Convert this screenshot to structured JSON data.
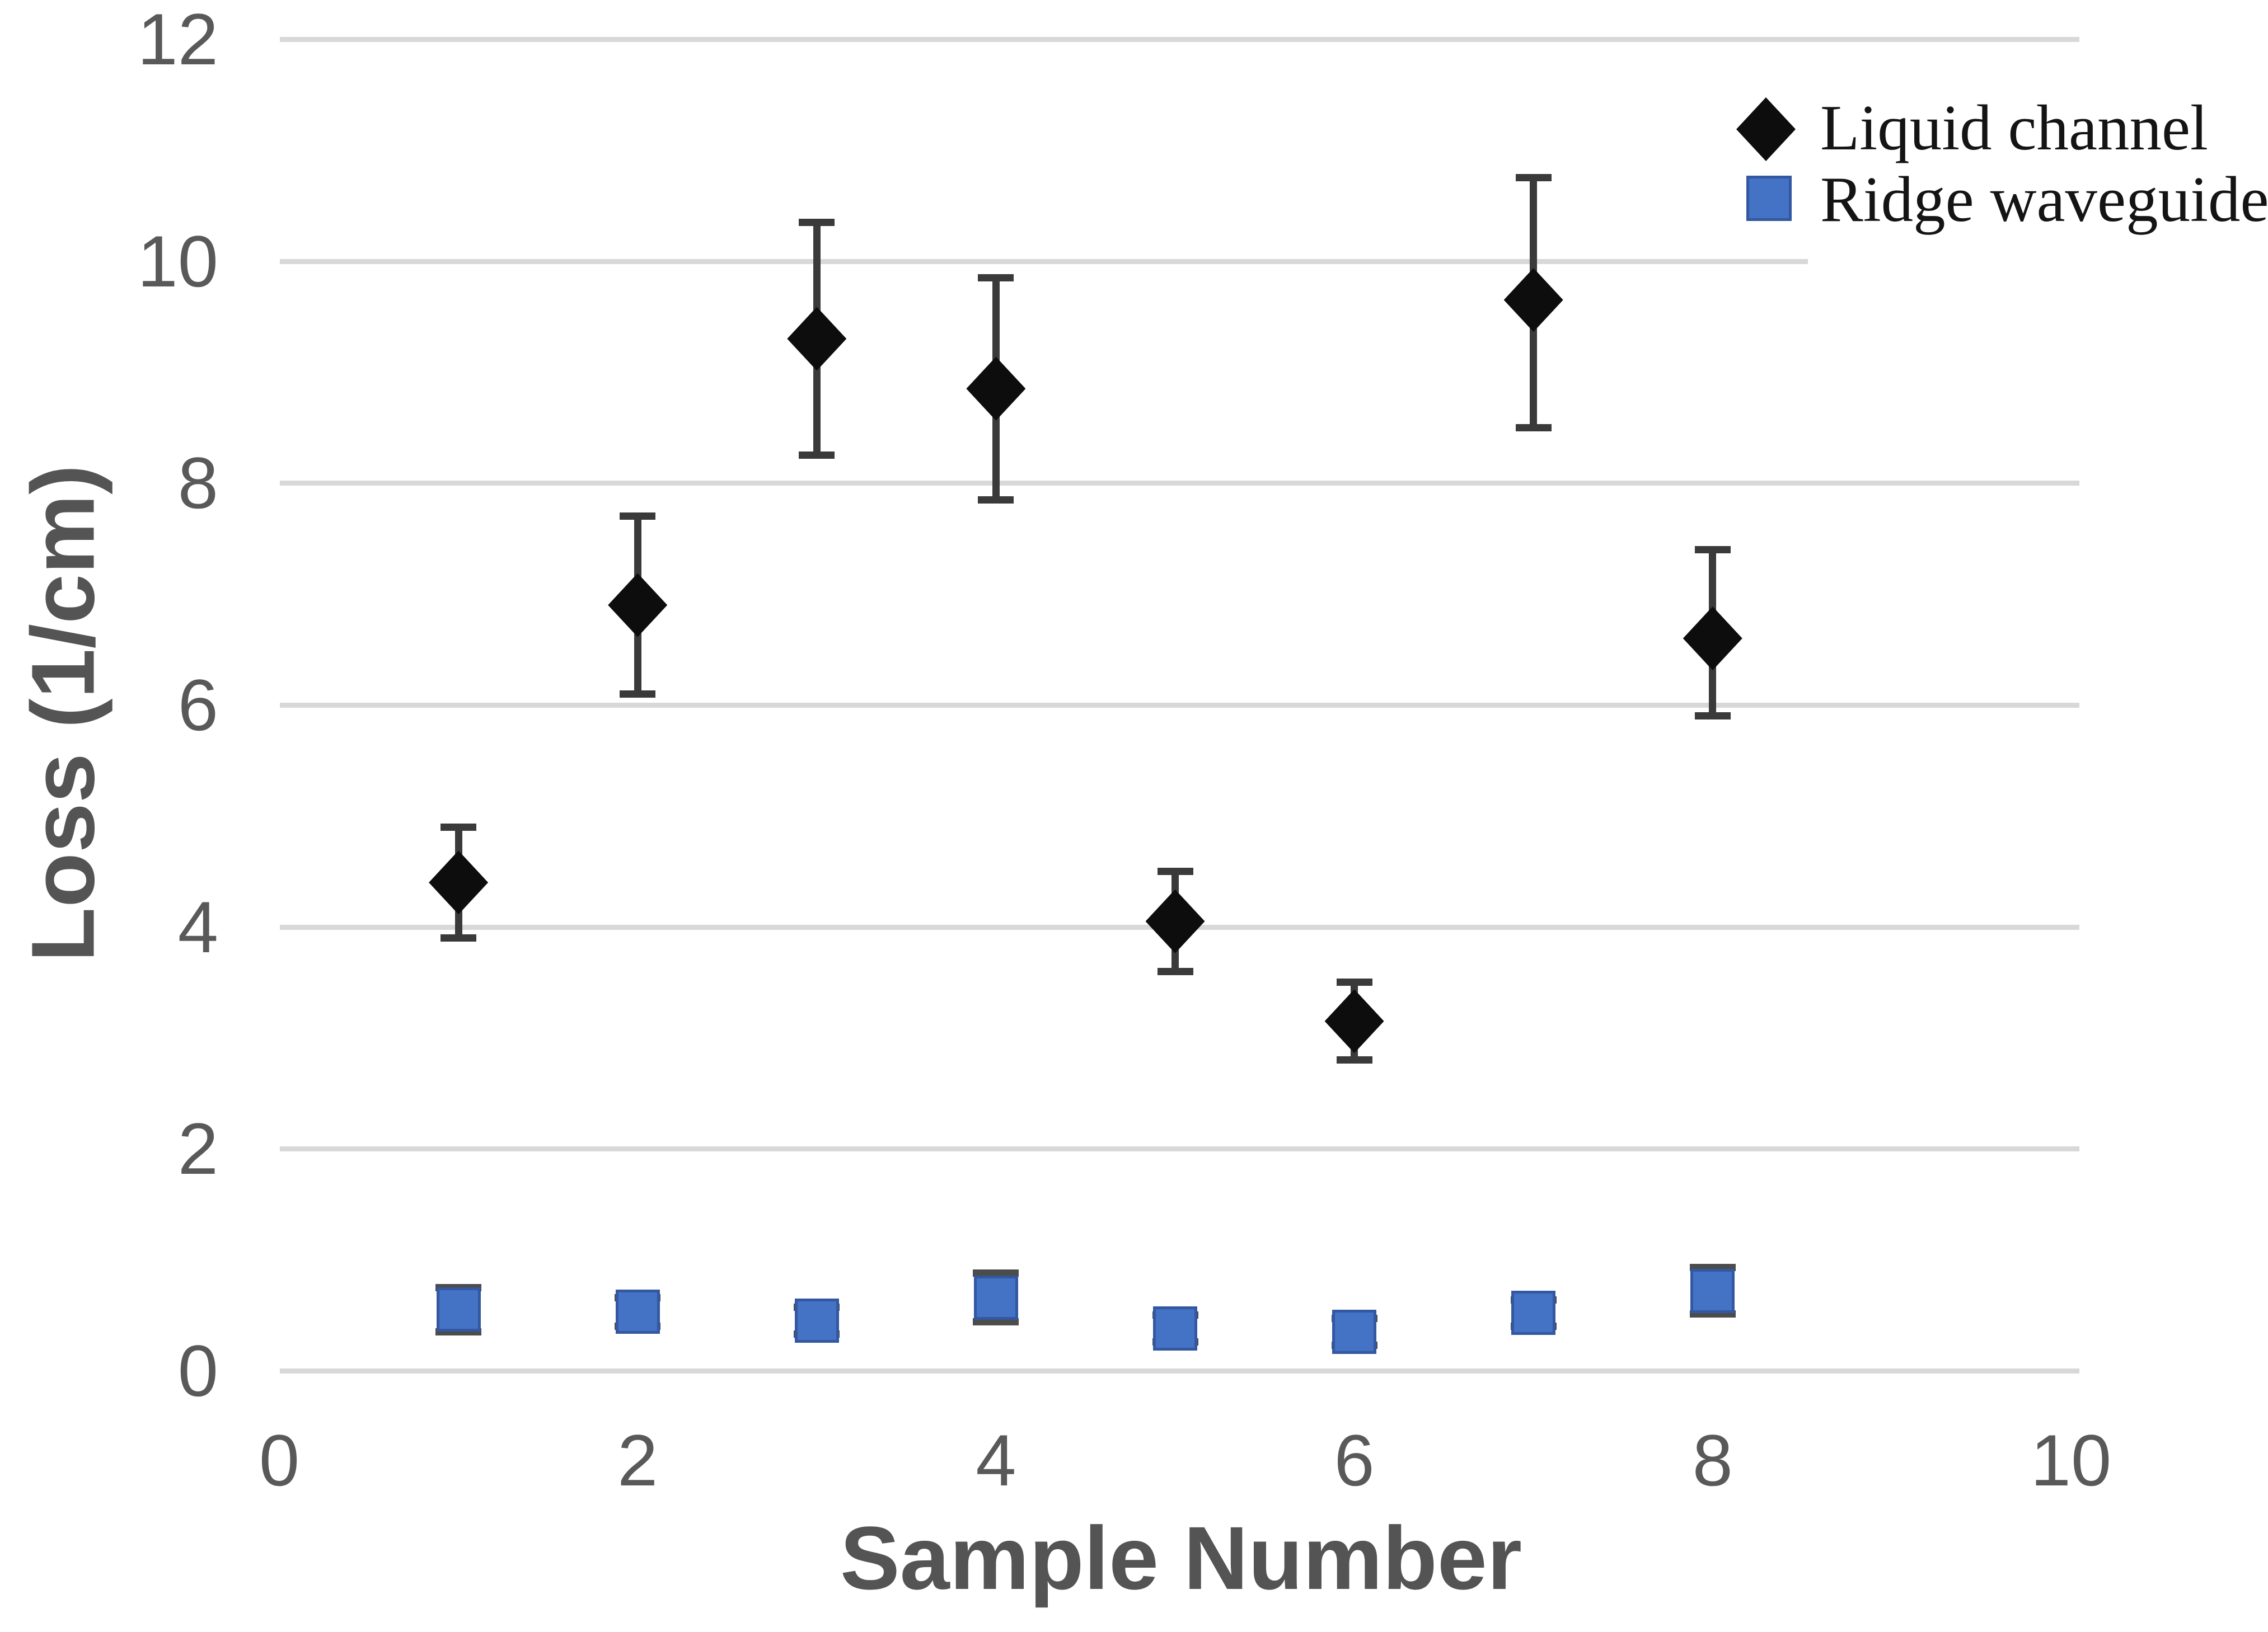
{
  "figure": {
    "kind": "excel-style scatter plot",
    "background": "#ffffff",
    "gridline_color": "#d8d8d8",
    "tick_label_color": "#595959",
    "axis_title_color": "#545454",
    "error_bar_color": "#3a3a3a"
  },
  "legend": {
    "position": "top-right",
    "items": [
      {
        "label": "Liquid channel",
        "marker": "diamond-icon",
        "color": "#0d0d0d"
      },
      {
        "label": "Ridge waveguide",
        "marker": "square-icon",
        "color": "#4472c4"
      }
    ]
  },
  "axes": {
    "x": {
      "title": "Sample Number",
      "ticks": [
        "0",
        "2",
        "4",
        "6",
        "8",
        "10"
      ],
      "tick_values": [
        0,
        2,
        4,
        6,
        8,
        10
      ],
      "range": [
        0,
        10
      ]
    },
    "y": {
      "title": "Loss (1/cm)",
      "ticks": [
        "12",
        "10",
        "8",
        "6",
        "4",
        "2",
        "0"
      ],
      "tick_values": [
        12,
        10,
        8,
        6,
        4,
        2,
        0
      ],
      "range": [
        0,
        12
      ]
    }
  },
  "chart_data": {
    "type": "scatter",
    "title": "",
    "xlabel": "Sample Number",
    "ylabel": "Loss (1/cm)",
    "xlim": [
      0,
      10
    ],
    "ylim": [
      0,
      12
    ],
    "grid": "horizontal-only",
    "legend_position": "top-right",
    "series": [
      {
        "name": "Liquid channel",
        "marker": "diamond",
        "color": "#0d0d0d",
        "x": [
          1,
          2,
          3,
          4,
          5,
          6,
          7,
          8
        ],
        "y": [
          4.4,
          6.9,
          9.3,
          8.85,
          4.05,
          3.15,
          9.65,
          6.6
        ],
        "err_low": [
          3.9,
          6.1,
          8.25,
          7.85,
          3.6,
          2.8,
          8.5,
          5.9
        ],
        "err_high": [
          4.9,
          7.7,
          10.35,
          9.85,
          4.5,
          3.5,
          10.75,
          7.4
        ]
      },
      {
        "name": "Ridge waveguide",
        "marker": "square",
        "color": "#4472c4",
        "x": [
          1,
          2,
          3,
          4,
          5,
          6,
          7,
          8
        ],
        "y": [
          0.55,
          0.53,
          0.45,
          0.66,
          0.38,
          0.35,
          0.52,
          0.72
        ],
        "err_low": [
          0.35,
          0.4,
          0.33,
          0.44,
          0.26,
          0.23,
          0.4,
          0.51
        ],
        "err_high": [
          0.75,
          0.66,
          0.57,
          0.88,
          0.5,
          0.47,
          0.64,
          0.93
        ]
      }
    ]
  }
}
